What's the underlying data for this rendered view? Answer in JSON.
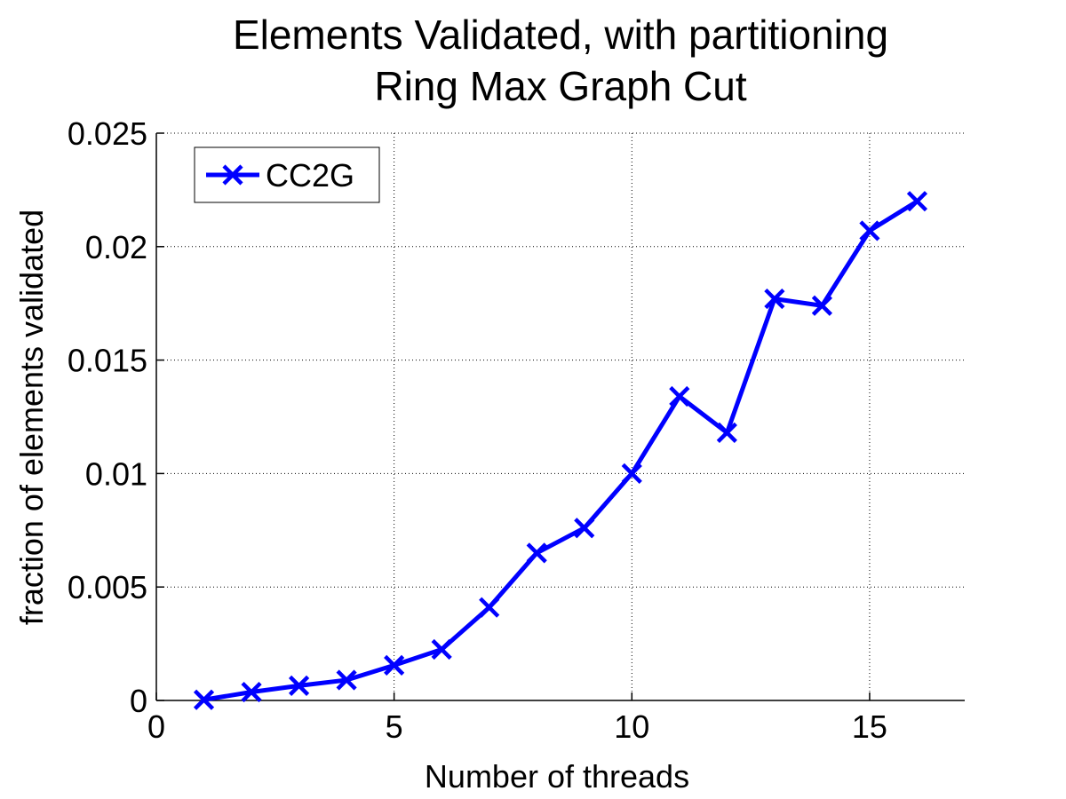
{
  "chart_data": {
    "type": "line",
    "title": "Elements Validated, with partitioning",
    "subtitle": "Ring Max Graph Cut",
    "xlabel": "Number of threads",
    "ylabel": "fraction of elements validated",
    "xlim": [
      0,
      17
    ],
    "ylim": [
      0,
      0.025
    ],
    "xticks": [
      0,
      5,
      10,
      15
    ],
    "xtick_labels": [
      "0",
      "5",
      "10",
      "15"
    ],
    "yticks": [
      0,
      0.005,
      0.01,
      0.015,
      0.02,
      0.025
    ],
    "ytick_labels": [
      "0",
      "0.005",
      "0.01",
      "0.015",
      "0.02",
      "0.025"
    ],
    "grid": true,
    "legend_position": "top-left",
    "series": [
      {
        "name": "CC2G",
        "color": "#0000ff",
        "marker": "x",
        "x": [
          1,
          2,
          3,
          4,
          5,
          6,
          7,
          8,
          9,
          10,
          11,
          12,
          13,
          14,
          15,
          16
        ],
        "y": [
          3e-05,
          0.00037,
          0.00065,
          0.0009,
          0.00155,
          0.00225,
          0.0041,
          0.0065,
          0.0076,
          0.01,
          0.0134,
          0.0118,
          0.0177,
          0.0174,
          0.0207,
          0.022
        ]
      }
    ]
  }
}
